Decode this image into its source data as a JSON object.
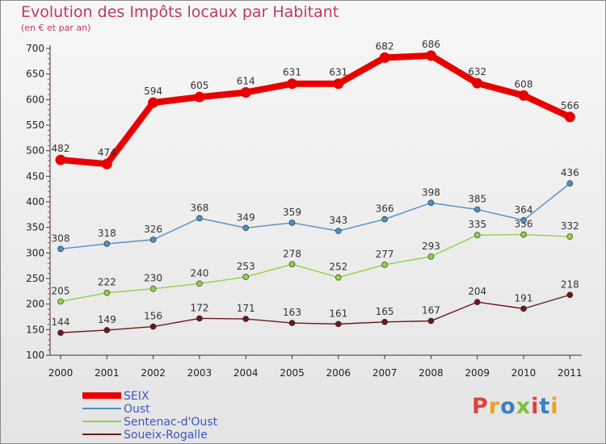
{
  "title": "Evolution des Impôts locaux par Habitant",
  "subtitle": "(en € et par an)",
  "brand": "Proxiti",
  "brand_colors": [
    "#e2403a",
    "#f0a21f",
    "#3b7fc4",
    "#7fbf3a",
    "#e2403a",
    "#3b7fc4",
    "#f0a21f"
  ],
  "chart_data": {
    "type": "line",
    "title": "Evolution des Impôts locaux par Habitant",
    "subtitle": "(en € et par an)",
    "xlabel": "",
    "ylabel": "",
    "x": [
      "2000",
      "2001",
      "2002",
      "2003",
      "2004",
      "2005",
      "2006",
      "2007",
      "2008",
      "2009",
      "2010",
      "2011"
    ],
    "yticks": [
      100,
      150,
      200,
      250,
      300,
      350,
      400,
      450,
      500,
      550,
      600,
      650,
      700
    ],
    "ylim": [
      100,
      700
    ],
    "grid": false,
    "legend_position": "bottom-left",
    "series": [
      {
        "name": "SEIX",
        "color": "#e80000",
        "values": [
          482,
          474,
          594,
          605,
          614,
          631,
          631,
          682,
          686,
          632,
          608,
          566
        ]
      },
      {
        "name": "Oust",
        "color": "#4f8fc6",
        "values": [
          308,
          318,
          326,
          368,
          349,
          359,
          343,
          366,
          398,
          385,
          364,
          436
        ]
      },
      {
        "name": "Sentenac-d'Oust",
        "color": "#8fd24a",
        "values": [
          205,
          222,
          230,
          240,
          253,
          278,
          252,
          277,
          293,
          335,
          336,
          332
        ]
      },
      {
        "name": "Soueix-Rogalle",
        "color": "#6b1a1a",
        "values": [
          144,
          149,
          156,
          172,
          171,
          163,
          161,
          165,
          167,
          204,
          191,
          218
        ]
      }
    ]
  }
}
